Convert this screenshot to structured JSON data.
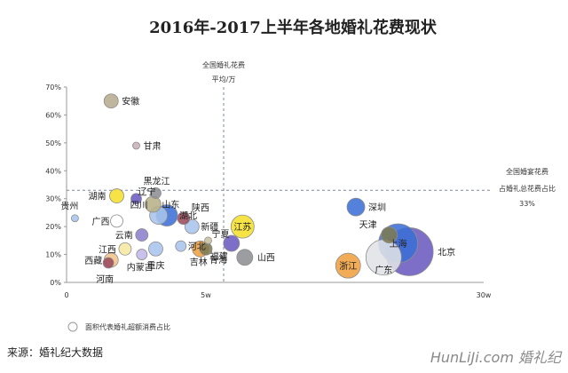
{
  "chart_data": {
    "type": "scatter",
    "title": "2016年-2017上半年各地婚礼花费现状",
    "x_ticks": [
      "0",
      "5w",
      "30w"
    ],
    "y_ticks": [
      "0%",
      "10%",
      "20%",
      "30%",
      "40%",
      "50%",
      "60%",
      "70%"
    ],
    "ylim": [
      0,
      70
    ],
    "grid": false,
    "mean_x_annotation": [
      "全国婚礼花费",
      "平均/万"
    ],
    "mean_y_annotation": [
      "全国婚宴花费",
      "占婚礼总花费占比",
      "33%"
    ],
    "legend_text": "面积代表婚礼超额消费占比",
    "source_text": "来源：婚礼纪大数据",
    "watermark_text": "HunLiJi.com 婚礼纪",
    "colors": {
      "yellow": "#f5e02c",
      "khaki": "#c9bfa0",
      "purple": "#6b5bc0",
      "blue": "#3b6fd6",
      "lightblue": "#a8c4ec",
      "orange": "#f0a040",
      "maroon": "#9b4a5c",
      "gray": "#8d8f93",
      "olive": "#7d7a52"
    },
    "series": [
      {
        "label": "安徽",
        "x": 1.6,
        "y": 65,
        "r": 8,
        "color": "#b6ac8f"
      },
      {
        "label": "甘肃",
        "x": 2.5,
        "y": 49,
        "r": 4,
        "color": "#c8b0b8"
      },
      {
        "label": "黑龙江",
        "x": 3.2,
        "y": 32,
        "r": 6,
        "color": "#8d8f93"
      },
      {
        "label": "湖南",
        "x": 1.8,
        "y": 31,
        "r": 8,
        "color": "#f5e02c"
      },
      {
        "label": "辽宁",
        "x": 2.5,
        "y": 30,
        "r": 6,
        "color": "#6b5bc0"
      },
      {
        "label": "山东",
        "x": 3.1,
        "y": 28,
        "r": 9,
        "color": "#b8b088"
      },
      {
        "label": "四川",
        "x": 3.3,
        "y": 24,
        "r": 10,
        "color": "#a8c4ec"
      },
      {
        "label": "湖北",
        "x": 3.6,
        "y": 24,
        "r": 12,
        "color": "#3b6fd6"
      },
      {
        "label": "陕西",
        "x": 4.2,
        "y": 23,
        "r": 7,
        "color": "#9b4a5c"
      },
      {
        "label": "贵州",
        "x": 0.3,
        "y": 23,
        "r": 4,
        "color": "#a8c4ec"
      },
      {
        "label": "广西",
        "x": 1.8,
        "y": 22,
        "r": 7,
        "color": "#ffffff"
      },
      {
        "label": "新疆",
        "x": 4.5,
        "y": 20,
        "r": 8,
        "color": "#a8c4ec"
      },
      {
        "label": "云南",
        "x": 2.7,
        "y": 17,
        "r": 7,
        "color": "#8b7fcc"
      },
      {
        "label": "宁夏",
        "x": 5.2,
        "y": 15,
        "r": 4,
        "color": "#c9bfa0"
      },
      {
        "label": "河北",
        "x": 4.1,
        "y": 13,
        "r": 6,
        "color": "#a8c4ec"
      },
      {
        "label": "江西",
        "x": 2.1,
        "y": 12,
        "r": 7,
        "color": "#f5e8a0"
      },
      {
        "label": "重庆",
        "x": 3.2,
        "y": 12,
        "r": 8,
        "color": "#a8c4ec"
      },
      {
        "label": "吉林",
        "x": 4.8,
        "y": 12,
        "r": 9,
        "color": "#f0a040"
      },
      {
        "label": "青海",
        "x": 5.0,
        "y": 12,
        "r": 7,
        "color": "#7d7a52"
      },
      {
        "label": "西藏",
        "x": 1.6,
        "y": 8,
        "r": 8,
        "color": "#f2c48a"
      },
      {
        "label": "内蒙古",
        "x": 2.7,
        "y": 10,
        "r": 6,
        "color": "#c2b8e8"
      },
      {
        "label": "河南",
        "x": 1.5,
        "y": 7,
        "r": 6,
        "color": "#9b4a5c"
      },
      {
        "label": "江苏",
        "x": 8.3,
        "y": 20,
        "r": 13,
        "color": "#f5e02c"
      },
      {
        "label": "福建",
        "x": 7.3,
        "y": 14,
        "r": 9,
        "color": "#6b5bc0"
      },
      {
        "label": "山西",
        "x": 8.5,
        "y": 9,
        "r": 9,
        "color": "#8d8f93"
      },
      {
        "label": "深圳",
        "x": 18.5,
        "y": 27,
        "r": 10,
        "color": "#3b6fd6"
      },
      {
        "label": "天津",
        "x": 21.5,
        "y": 17,
        "r": 9,
        "color": "#7d7a52"
      },
      {
        "label": "上海",
        "x": 22.3,
        "y": 14,
        "r": 22,
        "color": "#3b6fd6"
      },
      {
        "label": "北京",
        "x": 23.3,
        "y": 11,
        "r": 27,
        "color": "#6b5bc0"
      },
      {
        "label": "广东",
        "x": 21.0,
        "y": 9,
        "r": 20,
        "color": "#e0e2e6"
      },
      {
        "label": "浙江",
        "x": 17.8,
        "y": 6,
        "r": 14,
        "color": "#f0a040"
      }
    ]
  }
}
